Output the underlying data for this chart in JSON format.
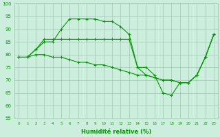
{
  "bg_color": "#cceedd",
  "grid_color": "#99bbaa",
  "line_color": "#009900",
  "xlabel": "Humidité relative (%)",
  "ylim": [
    55,
    100
  ],
  "xlim": [
    -0.5,
    23.5
  ],
  "yticks": [
    55,
    60,
    65,
    70,
    75,
    80,
    85,
    90,
    95,
    100
  ],
  "xticks": [
    0,
    1,
    2,
    3,
    4,
    5,
    6,
    7,
    8,
    9,
    10,
    11,
    12,
    13,
    14,
    15,
    16,
    17,
    18,
    19,
    20,
    21,
    22,
    23
  ],
  "line1_x": [
    0,
    1,
    2,
    3,
    4,
    5,
    6,
    7,
    8,
    9,
    10,
    11,
    12,
    13,
    14,
    15,
    16,
    17,
    18,
    19,
    20,
    21,
    22,
    23
  ],
  "line1_y": [
    79,
    79,
    82,
    85,
    85,
    90,
    94,
    94,
    94,
    94,
    93,
    93,
    91,
    88,
    75,
    75,
    72,
    65,
    64,
    69,
    69,
    72,
    79,
    88
  ],
  "line2_x": [
    0,
    1,
    2,
    3,
    4,
    5,
    6,
    7,
    8,
    9,
    10,
    11,
    12,
    13,
    14,
    15,
    16,
    17,
    18,
    19,
    20,
    21,
    22,
    23
  ],
  "line2_y": [
    79,
    79,
    82,
    86,
    86,
    86,
    86,
    86,
    86,
    86,
    86,
    86,
    86,
    86,
    75,
    72,
    71,
    70,
    70,
    69,
    69,
    72,
    79,
    88
  ],
  "line3_x": [
    0,
    1,
    2,
    3,
    4,
    5,
    6,
    7,
    8,
    9,
    10,
    11,
    12,
    13,
    14,
    15,
    16,
    17,
    18,
    19,
    20,
    21,
    22,
    23
  ],
  "line3_y": [
    79,
    79,
    80,
    80,
    79,
    79,
    78,
    77,
    77,
    76,
    76,
    75,
    74,
    73,
    72,
    72,
    71,
    70,
    70,
    69,
    69,
    72,
    79,
    88
  ],
  "xlabel_fontsize": 6,
  "tick_fontsize": 5
}
